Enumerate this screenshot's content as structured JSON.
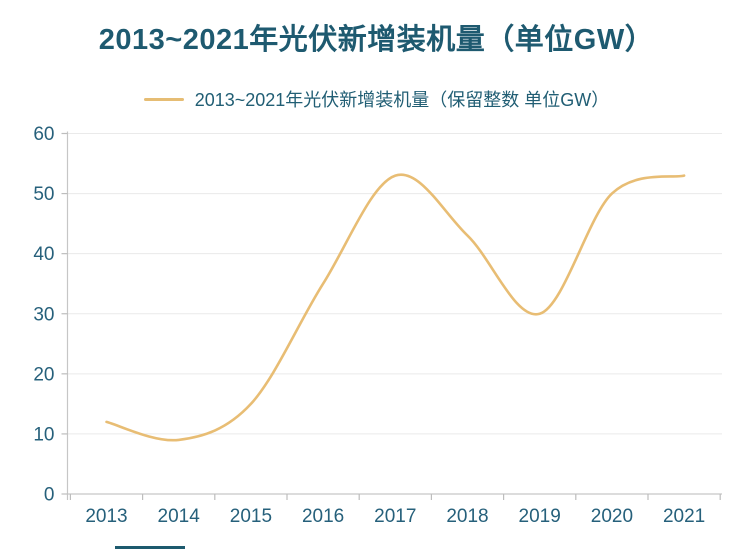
{
  "chart": {
    "title": "2013~2021年光伏新增装机量（单位GW）",
    "legend": "2013~2021年光伏新增装机量（保留整数 单位GW）"
  },
  "chart_data": {
    "type": "line",
    "smooth": true,
    "title": "2013~2021年光伏新增装机量（单位GW）",
    "categories": [
      "2013",
      "2014",
      "2015",
      "2016",
      "2017",
      "2018",
      "2019",
      "2020",
      "2021"
    ],
    "series": [
      {
        "name": "2013~2021年光伏新增装机量（保留整数 单位GW）",
        "values": [
          12,
          9,
          15,
          35,
          53,
          43,
          30,
          50,
          53
        ],
        "color": "#e8bd74"
      }
    ],
    "xlabel": "",
    "ylabel": "",
    "ylim": [
      0,
      60
    ],
    "yticks": [
      0,
      10,
      20,
      30,
      40,
      50,
      60
    ],
    "grid": true,
    "legend_position": "top",
    "colors": {
      "title_text": "#1e5a70",
      "axis_text": "#26607b",
      "gridline": "#eaeaea",
      "axis_line": "#c6c6c6",
      "tick_mark": "#bdbdbd",
      "line": "#e8bd74",
      "background": "#ffffff",
      "bottom_fragment": "#1d5a6e"
    }
  }
}
